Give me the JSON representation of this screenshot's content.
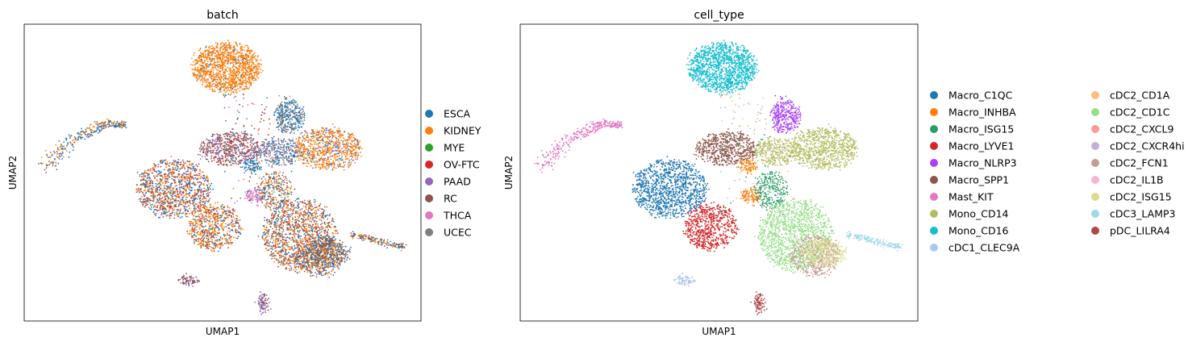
{
  "chart_data": [
    {
      "type": "scatter",
      "title": "batch",
      "xlabel": "UMAP1",
      "ylabel": "UMAP2",
      "grid": false,
      "ticks": "none",
      "legend_placement": "right",
      "legend": [
        {
          "name": "ESCA",
          "color": "#1f77b4"
        },
        {
          "name": "KIDNEY",
          "color": "#ff7f0e"
        },
        {
          "name": "MYE",
          "color": "#2ca02c"
        },
        {
          "name": "OV-FTC",
          "color": "#d62728"
        },
        {
          "name": "PAAD",
          "color": "#9467bd"
        },
        {
          "name": "RC",
          "color": "#8c564b"
        },
        {
          "name": "THCA",
          "color": "#e377c2"
        },
        {
          "name": "UCEC",
          "color": "#7f7f7f"
        }
      ]
    },
    {
      "type": "scatter",
      "title": "cell_type",
      "xlabel": "UMAP1",
      "ylabel": "UMAP2",
      "grid": false,
      "ticks": "none",
      "legend_placement": "right",
      "legend": [
        {
          "name": "Macro_C1QC",
          "color": "#1f77b4"
        },
        {
          "name": "Macro_INHBA",
          "color": "#ff7f0e"
        },
        {
          "name": "Macro_ISG15",
          "color": "#279e68"
        },
        {
          "name": "Macro_LYVE1",
          "color": "#d62728"
        },
        {
          "name": "Macro_NLRP3",
          "color": "#aa40fc"
        },
        {
          "name": "Macro_SPP1",
          "color": "#8c564b"
        },
        {
          "name": "Mast_KIT",
          "color": "#e377c2"
        },
        {
          "name": "Mono_CD14",
          "color": "#b5bd61"
        },
        {
          "name": "Mono_CD16",
          "color": "#17becf"
        },
        {
          "name": "cDC1_CLEC9A",
          "color": "#aec7e8"
        },
        {
          "name": "cDC2_CD1A",
          "color": "#ffbb78"
        },
        {
          "name": "cDC2_CD1C",
          "color": "#98df8a"
        },
        {
          "name": "cDC2_CXCL9",
          "color": "#ff9896"
        },
        {
          "name": "cDC2_CXCR4hi",
          "color": "#c5b0d5"
        },
        {
          "name": "cDC2_FCN1",
          "color": "#c49c94"
        },
        {
          "name": "cDC2_IL1B",
          "color": "#f7b6d2"
        },
        {
          "name": "cDC2_ISG15",
          "color": "#dbdb8d"
        },
        {
          "name": "cDC3_LAMP3",
          "color": "#9edae5"
        },
        {
          "name": "pDC_LILRA4",
          "color": "#ad494a"
        }
      ]
    }
  ]
}
